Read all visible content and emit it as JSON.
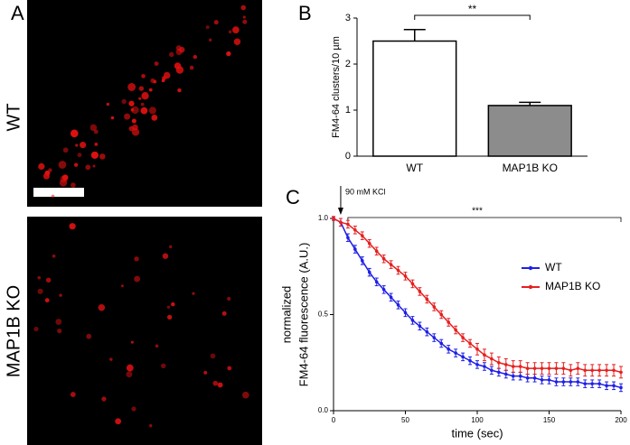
{
  "panel_a": {
    "label": "A",
    "images": [
      {
        "label": "WT"
      },
      {
        "label": "MAP1B KO"
      }
    ]
  },
  "chart_data": [
    {
      "type": "bar",
      "panel": "B",
      "ylabel": "FM4-64 clusters/10 µm",
      "categories": [
        "WT",
        "MAP1B KO"
      ],
      "values": [
        2.5,
        1.1
      ],
      "errors": [
        0.25,
        0.07
      ],
      "colors": [
        "#ffffff",
        "#8c8c8c"
      ],
      "ylim": [
        0,
        3
      ],
      "yticks": [
        0,
        1,
        2,
        3
      ],
      "significance": "**"
    },
    {
      "type": "line",
      "panel": "C",
      "xlabel": "time (sec)",
      "ylabel": [
        "normalized",
        "FM4-64 fluorescence (A.U.)"
      ],
      "annotation": "90 mM KCl",
      "annotation_x": 5,
      "significance": "***",
      "x": [
        0,
        5,
        10,
        15,
        20,
        25,
        30,
        35,
        40,
        45,
        50,
        55,
        60,
        65,
        70,
        75,
        80,
        85,
        90,
        95,
        100,
        105,
        110,
        115,
        120,
        125,
        130,
        135,
        140,
        145,
        150,
        155,
        160,
        165,
        170,
        175,
        180,
        185,
        190,
        195,
        200
      ],
      "series": [
        {
          "name": "WT",
          "color": "#1f1fe6",
          "values": [
            1.0,
            0.98,
            0.9,
            0.84,
            0.78,
            0.72,
            0.67,
            0.63,
            0.59,
            0.55,
            0.51,
            0.47,
            0.44,
            0.41,
            0.38,
            0.35,
            0.32,
            0.3,
            0.28,
            0.26,
            0.24,
            0.23,
            0.21,
            0.2,
            0.19,
            0.18,
            0.18,
            0.17,
            0.17,
            0.16,
            0.16,
            0.15,
            0.15,
            0.15,
            0.15,
            0.14,
            0.14,
            0.14,
            0.13,
            0.13,
            0.12
          ],
          "errors": [
            0.01,
            0.02,
            0.02,
            0.02,
            0.02,
            0.02,
            0.02,
            0.02,
            0.02,
            0.02,
            0.02,
            0.02,
            0.02,
            0.02,
            0.02,
            0.02,
            0.02,
            0.02,
            0.02,
            0.02,
            0.02,
            0.02,
            0.02,
            0.02,
            0.02,
            0.02,
            0.02,
            0.02,
            0.02,
            0.02,
            0.02,
            0.02,
            0.02,
            0.02,
            0.02,
            0.02,
            0.02,
            0.02,
            0.02,
            0.02,
            0.02
          ]
        },
        {
          "name": "MAP1B KO",
          "color": "#e61f1f",
          "values": [
            1.0,
            0.98,
            0.97,
            0.94,
            0.91,
            0.87,
            0.83,
            0.79,
            0.76,
            0.73,
            0.7,
            0.66,
            0.62,
            0.58,
            0.54,
            0.5,
            0.46,
            0.42,
            0.38,
            0.35,
            0.32,
            0.29,
            0.27,
            0.25,
            0.24,
            0.23,
            0.23,
            0.22,
            0.22,
            0.22,
            0.22,
            0.22,
            0.22,
            0.21,
            0.22,
            0.21,
            0.21,
            0.21,
            0.21,
            0.21,
            0.2
          ],
          "errors": [
            0.01,
            0.02,
            0.02,
            0.02,
            0.02,
            0.02,
            0.02,
            0.02,
            0.02,
            0.02,
            0.02,
            0.02,
            0.02,
            0.02,
            0.02,
            0.02,
            0.02,
            0.02,
            0.02,
            0.02,
            0.03,
            0.03,
            0.03,
            0.03,
            0.03,
            0.03,
            0.03,
            0.03,
            0.03,
            0.03,
            0.03,
            0.03,
            0.03,
            0.03,
            0.03,
            0.03,
            0.03,
            0.03,
            0.03,
            0.03,
            0.03
          ]
        }
      ],
      "xlim": [
        0,
        200
      ],
      "xticks": [
        0,
        50,
        100,
        150,
        200
      ],
      "ylim": [
        0,
        1
      ],
      "yticks": [
        {
          "value": 0,
          "label": "0.0"
        },
        {
          "value": 0.5,
          "label": "0.5"
        },
        {
          "value": 1,
          "label": "1.0"
        }
      ],
      "legend": "right"
    }
  ]
}
